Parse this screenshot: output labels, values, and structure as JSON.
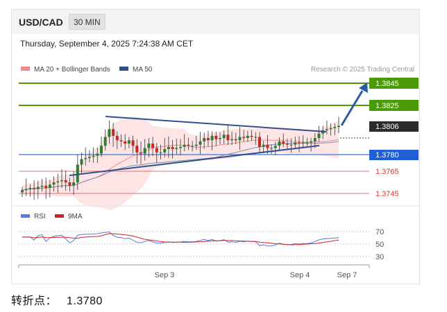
{
  "header": {
    "pair": "USD/CAD",
    "timeframe": "30 MIN"
  },
  "timestamp": "Thursday, September 4, 2025 7:24:38 AM CET",
  "legend": {
    "items": [
      "MA 20 + Bollinger Bands",
      "MA 50"
    ],
    "colors": [
      "#f08a8a",
      "#2f4f7f"
    ],
    "credit": "Research © 2025 Trading Central"
  },
  "price_labels": [
    {
      "value": "1.3845",
      "style": "green"
    },
    {
      "value": "1.3825",
      "style": "green"
    },
    {
      "value": "1.3806",
      "style": "dark"
    },
    {
      "value": "1.3780",
      "style": "blue"
    },
    {
      "value": "1.3765",
      "style": "red"
    },
    {
      "value": "1.3745",
      "style": "red"
    }
  ],
  "colors": {
    "resistance": "#4a9a0a",
    "current": "#2b2b2b",
    "pivot": "#1e5fd6",
    "support": "#d43a3a",
    "bull": "#2e7d32",
    "bear": "#c62828",
    "trend": "#2f4f8f",
    "arrow": "#2c5aa0",
    "rsi": "#5a78d8",
    "rsi_ma": "#d22020"
  },
  "rsi": {
    "legend": [
      "RSI",
      "9MA"
    ],
    "levels": [
      "70",
      "50",
      "30"
    ]
  },
  "x_labels": [
    "Sep 3",
    "Sep 4",
    "Sep 7"
  ],
  "footer": {
    "label": "转折点：",
    "value": "1.3780"
  },
  "chart_data": {
    "type": "candlestick",
    "title": "USD/CAD",
    "timeframe": "30 MIN",
    "y_range": [
      1.3735,
      1.3852
    ],
    "levels": {
      "resistance_2": 1.3845,
      "resistance_1": 1.3825,
      "current": 1.3806,
      "pivot": 1.378,
      "support_1": 1.3765,
      "support_2": 1.3745
    },
    "close_series": [
      1.3748,
      1.3749,
      1.375,
      1.3749,
      1.3751,
      1.3752,
      1.375,
      1.3753,
      1.3755,
      1.3756,
      1.3757,
      1.3755,
      1.3752,
      1.3755,
      1.3771,
      1.3776,
      1.3777,
      1.3778,
      1.3779,
      1.3781,
      1.3788,
      1.3796,
      1.3803,
      1.3797,
      1.3793,
      1.3792,
      1.379,
      1.3793,
      1.3788,
      1.3782,
      1.3781,
      1.3786,
      1.379,
      1.3786,
      1.3782,
      1.3782,
      1.3785,
      1.3787,
      1.3785,
      1.3786,
      1.3787,
      1.3789,
      1.3788,
      1.3788,
      1.3789,
      1.3792,
      1.3795,
      1.3793,
      1.3797,
      1.3794,
      1.3795,
      1.3798,
      1.3793,
      1.3794,
      1.3793,
      1.3796,
      1.3795,
      1.3797,
      1.3796,
      1.3796,
      1.3787,
      1.3789,
      1.3786,
      1.3786,
      1.3788,
      1.3792,
      1.379,
      1.3789,
      1.3789,
      1.3791,
      1.379,
      1.3791,
      1.3791,
      1.3792,
      1.3795,
      1.3799,
      1.3802,
      1.3803,
      1.3804,
      1.3805,
      1.3806
    ],
    "x_ticks": [
      "Sep 3",
      "Sep 4",
      "Sep 7"
    ],
    "rsi_levels": [
      70,
      50,
      30
    ]
  }
}
